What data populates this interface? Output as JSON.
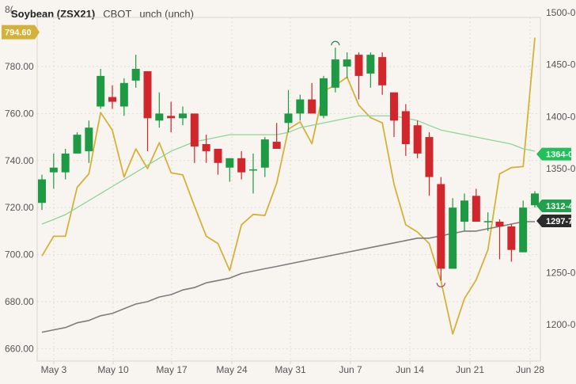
{
  "header": {
    "symbol": "Soybean (ZSX21)",
    "exchange": "CBOT",
    "change": "unch (unch)",
    "clipped_left_label": "8("
  },
  "price_tags": {
    "left_current": {
      "label": "794.60",
      "value": 794.6,
      "color": "#d4b23a"
    },
    "right": [
      {
        "label": "1364-0",
        "value": 1364.0,
        "color": "#22c05a",
        "text_color": "#ffffff"
      },
      {
        "label": "1312-4",
        "value": 1312.5,
        "color": "#22a050",
        "text_color": "#ffffff"
      },
      {
        "label": "1297-7",
        "value": 1297.875,
        "color": "#2b2b2b",
        "text_color": "#ffffff"
      }
    ]
  },
  "colors": {
    "background": "#f8f5f0",
    "up": "#1e9a44",
    "down": "#d0262c",
    "overlay_line": "#d4b23a",
    "ma_fast": "#8fd49a",
    "ma_slow": "#7d7d7d",
    "grid": "#e2ddd4",
    "axis_border": "#d9d4cc"
  },
  "chart_data": {
    "type": "candlestick",
    "title": "Soybean (ZSX21) CBOT unch (unch)",
    "xlabel": "",
    "ylabel_left": "",
    "ylabel_right": "",
    "ylim_left": [
      656,
      800
    ],
    "ylim_right": [
      1180,
      1500
    ],
    "grid": true,
    "x_ticks": [
      "May 3",
      "May 10",
      "May 17",
      "May 24",
      "May 31",
      "Jun 7",
      "Jun 14",
      "Jun 21",
      "Jun 28"
    ],
    "y_ticks_left": [
      "780.00",
      "760.00",
      "740.00",
      "720.00",
      "700.00",
      "680.00",
      "660.00"
    ],
    "y_ticks_right": [
      "1500-0",
      "1450-0",
      "1400-0",
      "1350-0",
      "1250-0",
      "1200-0"
    ],
    "candles": [
      {
        "date": "Apr 30",
        "open": 722,
        "high": 734,
        "low": 719,
        "close": 732
      },
      {
        "date": "May 3",
        "open": 735,
        "high": 743,
        "low": 728,
        "close": 737
      },
      {
        "date": "May 4",
        "open": 735,
        "high": 745,
        "low": 732,
        "close": 743
      },
      {
        "date": "May 5",
        "open": 743,
        "high": 752,
        "low": 743,
        "close": 751
      },
      {
        "date": "May 6",
        "open": 744,
        "high": 757,
        "low": 739,
        "close": 754
      },
      {
        "date": "May 7",
        "open": 763,
        "high": 779,
        "low": 762,
        "close": 776
      },
      {
        "date": "May 10",
        "open": 767,
        "high": 772,
        "low": 762,
        "close": 765
      },
      {
        "date": "May 11",
        "open": 763,
        "high": 775,
        "low": 759,
        "close": 773
      },
      {
        "date": "May 12",
        "open": 774,
        "high": 785,
        "low": 771,
        "close": 779
      },
      {
        "date": "May 13",
        "open": 778,
        "high": 778,
        "low": 744,
        "close": 758
      },
      {
        "date": "May 14",
        "open": 757,
        "high": 769,
        "low": 754,
        "close": 760
      },
      {
        "date": "May 17",
        "open": 759,
        "high": 765,
        "low": 752,
        "close": 758
      },
      {
        "date": "May 18",
        "open": 758,
        "high": 763,
        "low": 755,
        "close": 760
      },
      {
        "date": "May 19",
        "open": 760,
        "high": 760,
        "low": 739,
        "close": 746
      },
      {
        "date": "May 20",
        "open": 747,
        "high": 751,
        "low": 739,
        "close": 744
      },
      {
        "date": "May 21",
        "open": 745,
        "high": 745,
        "low": 734,
        "close": 739
      },
      {
        "date": "May 24",
        "open": 737,
        "high": 741,
        "low": 731,
        "close": 741
      },
      {
        "date": "May 25",
        "open": 741,
        "high": 744,
        "low": 732,
        "close": 735
      },
      {
        "date": "May 26",
        "open": 736,
        "high": 743,
        "low": 726,
        "close": 736
      },
      {
        "date": "May 27",
        "open": 737,
        "high": 750,
        "low": 733,
        "close": 749
      },
      {
        "date": "May 28",
        "open": 748,
        "high": 756,
        "low": 745,
        "close": 745
      },
      {
        "date": "Jun 1",
        "open": 756,
        "high": 770,
        "low": 752,
        "close": 760
      },
      {
        "date": "Jun 2",
        "open": 760,
        "high": 768,
        "low": 757,
        "close": 766
      },
      {
        "date": "Jun 3",
        "open": 766,
        "high": 773,
        "low": 762,
        "close": 760
      },
      {
        "date": "Jun 4",
        "open": 759,
        "high": 776,
        "low": 758,
        "close": 775
      },
      {
        "date": "Jun 7",
        "open": 771,
        "high": 788,
        "low": 769,
        "close": 783
      },
      {
        "date": "Jun 8",
        "open": 780,
        "high": 786,
        "low": 775,
        "close": 783
      },
      {
        "date": "Jun 9",
        "open": 785,
        "high": 786,
        "low": 766,
        "close": 776
      },
      {
        "date": "Jun 10",
        "open": 777,
        "high": 786,
        "low": 771,
        "close": 785
      },
      {
        "date": "Jun 11",
        "open": 784,
        "high": 786,
        "low": 768,
        "close": 772
      },
      {
        "date": "Jun 14",
        "open": 769,
        "high": 769,
        "low": 750,
        "close": 757
      },
      {
        "date": "Jun 15",
        "open": 761,
        "high": 764,
        "low": 742,
        "close": 747
      },
      {
        "date": "Jun 16",
        "open": 755,
        "high": 757,
        "low": 741,
        "close": 743
      },
      {
        "date": "Jun 17",
        "open": 750,
        "high": 752,
        "low": 725,
        "close": 733
      },
      {
        "date": "Jun 18",
        "open": 730,
        "high": 733,
        "low": 689,
        "close": 694
      },
      {
        "date": "Jun 21",
        "open": 694,
        "high": 724,
        "low": 694,
        "close": 720
      },
      {
        "date": "Jun 22",
        "open": 714,
        "high": 726,
        "low": 710,
        "close": 723
      },
      {
        "date": "Jun 23",
        "open": 725,
        "high": 728,
        "low": 716,
        "close": 714
      },
      {
        "date": "Jun 24",
        "open": 714,
        "high": 718,
        "low": 710,
        "close": 714
      },
      {
        "date": "Jun 25",
        "open": 714,
        "high": 715,
        "low": 698,
        "close": 712
      },
      {
        "date": "Jun 28",
        "open": 712,
        "high": 713,
        "low": 697,
        "close": 702
      },
      {
        "date": "Jun 29",
        "open": 701,
        "high": 723,
        "low": 701,
        "close": 720
      },
      {
        "date": "Jun 30",
        "open": 721,
        "high": 727,
        "low": 720,
        "close": 726
      }
    ],
    "markers": [
      {
        "type": "high",
        "date": "Jun 7",
        "value": 788
      },
      {
        "type": "low",
        "date": "Jun 18",
        "value": 689
      }
    ],
    "series": [
      {
        "name": "Overlay (right axis)",
        "axis": "right",
        "color": "#d4b23a",
        "values": [
          1266,
          1285,
          1285,
          1332,
          1345,
          1404,
          1387,
          1342,
          1369,
          1350,
          1375,
          1346,
          1344,
          1314,
          1285,
          1278,
          1252,
          1296,
          1306,
          1305,
          1336,
          1388,
          1395,
          1374,
          1425,
          1430,
          1438,
          1411,
          1399,
          1394,
          1335,
          1296,
          1289,
          1278,
          1242,
          1191,
          1225,
          1243,
          1272,
          1345,
          1351,
          1352,
          1476
        ]
      },
      {
        "name": "MA fast (left axis)",
        "axis": "left",
        "color": "#8fd49a",
        "values": [
          713,
          715,
          717,
          720,
          723,
          726,
          729,
          732,
          735,
          738,
          741,
          744,
          746,
          748,
          749,
          750,
          751,
          751,
          751,
          751,
          751,
          752,
          754,
          755,
          756,
          757,
          758,
          759,
          759,
          759,
          759,
          758,
          757,
          755,
          753,
          752,
          751,
          750,
          749,
          748,
          747,
          745,
          744
        ]
      },
      {
        "name": "MA slow (left axis)",
        "axis": "left",
        "color": "#7d7d7d",
        "values": [
          667,
          668,
          669,
          671,
          672,
          674,
          675,
          677,
          679,
          680,
          682,
          683,
          685,
          686,
          688,
          689,
          690,
          692,
          693,
          694,
          695,
          696,
          697,
          698,
          699,
          700,
          701,
          702,
          703,
          704,
          705,
          706,
          707,
          707,
          708,
          709,
          710,
          710,
          711,
          712,
          713,
          714,
          714
        ]
      }
    ]
  }
}
